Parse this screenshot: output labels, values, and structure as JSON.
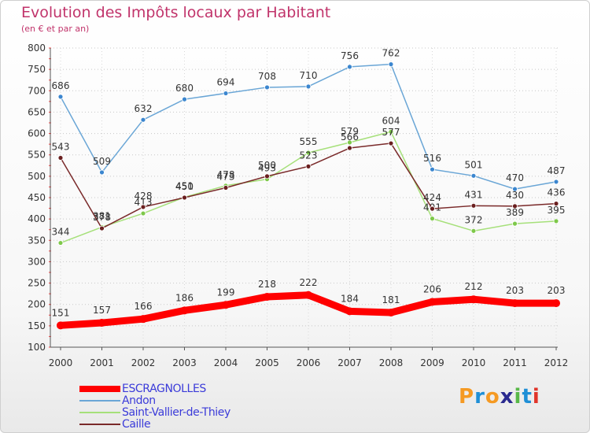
{
  "chart_data": {
    "type": "line",
    "title": "Evolution des Impôts locaux par Habitant",
    "subtitle": "(en € et par an)",
    "xlabel": "",
    "ylabel": "",
    "x": [
      "2000",
      "2001",
      "2002",
      "2003",
      "2004",
      "2005",
      "2006",
      "2007",
      "2008",
      "2009",
      "2010",
      "2011",
      "2012"
    ],
    "ylim": [
      100,
      800
    ],
    "yticks": [
      100,
      150,
      200,
      250,
      300,
      350,
      400,
      450,
      500,
      550,
      600,
      650,
      700,
      750,
      800
    ],
    "grid": "horizontal-dotted",
    "legend": "bottom-left",
    "series": [
      {
        "name": "Andon",
        "color": "#6aa6d6",
        "marker": "#3b86cf",
        "values": [
          686,
          509,
          632,
          680,
          694,
          708,
          710,
          756,
          762,
          516,
          501,
          470,
          487
        ]
      },
      {
        "name": "Saint-Vallier-de-Thiey",
        "color": "#a6e07a",
        "marker": "#7ec84a",
        "values": [
          344,
          381,
          413,
          451,
          478,
          493,
          555,
          579,
          604,
          401,
          372,
          389,
          395
        ]
      },
      {
        "name": "Caille",
        "color": "#7a2a2a",
        "marker": "#6a1f1f",
        "values": [
          543,
          378,
          428,
          450,
          473,
          500,
          523,
          566,
          577,
          424,
          431,
          430,
          436
        ]
      },
      {
        "name": "ESCRAGNOLLES",
        "color": "#ff0000",
        "marker": "#ff0000",
        "values": [
          151,
          157,
          166,
          186,
          199,
          218,
          222,
          184,
          181,
          206,
          212,
          203,
          203
        ]
      }
    ]
  },
  "legend": {
    "items": [
      {
        "label": "ESCRAGNOLLES",
        "color": "#ff0000"
      },
      {
        "label": "Andon",
        "color": "#6aa6d6"
      },
      {
        "label": "Saint-Vallier-de-Thiey",
        "color": "#a6e07a"
      },
      {
        "label": "Caille",
        "color": "#7a2a2a"
      }
    ]
  },
  "logo": {
    "letters": [
      "P",
      "r",
      "o",
      "x",
      "i",
      "t",
      "i"
    ],
    "colors": [
      "#f59a23",
      "#1f8fd6",
      "#f59a23",
      "#2a2a8f",
      "#58b848",
      "#1f8fd6",
      "#e0352b"
    ]
  }
}
